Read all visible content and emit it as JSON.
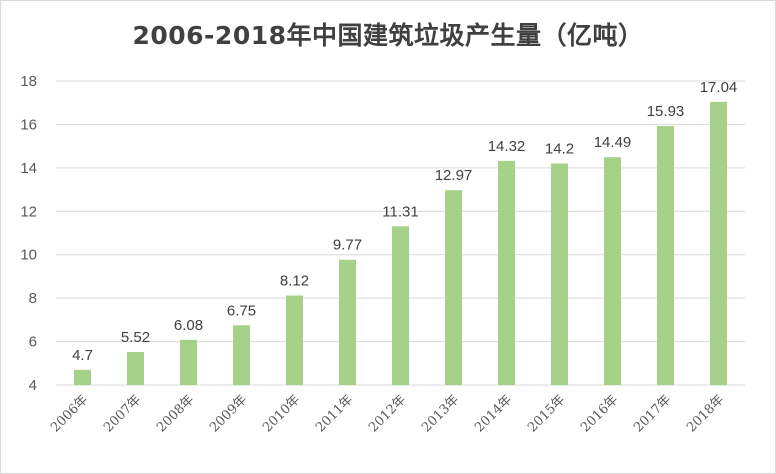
{
  "chart_data": {
    "type": "bar",
    "title": "2006-2018年中国建筑垃圾产生量（亿吨）",
    "categories": [
      "2006年",
      "2007年",
      "2008年",
      "2009年",
      "2010年",
      "2011年",
      "2012年",
      "2013年",
      "2014年",
      "2015年",
      "2016年",
      "2017年",
      "2018年"
    ],
    "values": [
      4.7,
      5.52,
      6.08,
      6.75,
      8.12,
      9.77,
      11.31,
      12.97,
      14.32,
      14.2,
      14.49,
      15.93,
      17.04
    ],
    "value_labels": [
      "4.7",
      "5.52",
      "6.08",
      "6.75",
      "8.12",
      "9.77",
      "11.31",
      "12.97",
      "14.32",
      "14.2",
      "14.49",
      "15.93",
      "17.04"
    ],
    "yticks": [
      "4",
      "6",
      "8",
      "10",
      "12",
      "14",
      "16",
      "18"
    ],
    "ylim": [
      4,
      18
    ],
    "xlabel": "",
    "ylabel": "",
    "grid": true,
    "legend": "none",
    "bar_color": "#a6d189",
    "grid_color": "#d9d9d9"
  }
}
